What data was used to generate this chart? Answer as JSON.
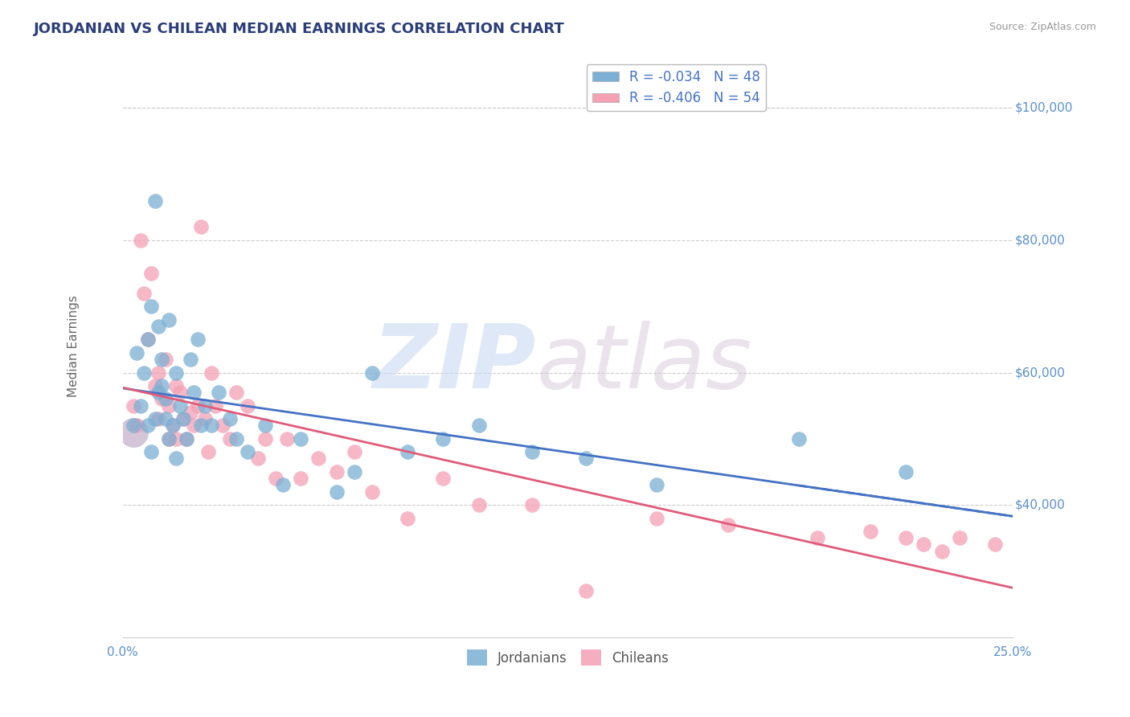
{
  "title": "JORDANIAN VS CHILEAN MEDIAN EARNINGS CORRELATION CHART",
  "source": "Source: ZipAtlas.com",
  "ylabel": "Median Earnings",
  "xlim": [
    0.0,
    0.25
  ],
  "ylim": [
    20000,
    108000
  ],
  "jordanians_color": "#7bafd4",
  "chileans_color": "#f4a0b5",
  "trendline_jordan_color": "#4472c4",
  "trendline_chile_color": "#e05c7a",
  "title_color": "#2c3e7a",
  "tick_label_color": "#5b8fcf",
  "grid_color": "#cccccc",
  "jordanians_x": [
    0.003,
    0.004,
    0.005,
    0.006,
    0.007,
    0.007,
    0.008,
    0.008,
    0.009,
    0.009,
    0.01,
    0.01,
    0.011,
    0.011,
    0.012,
    0.012,
    0.013,
    0.013,
    0.014,
    0.015,
    0.015,
    0.016,
    0.017,
    0.018,
    0.019,
    0.02,
    0.021,
    0.022,
    0.023,
    0.025,
    0.027,
    0.03,
    0.032,
    0.035,
    0.04,
    0.045,
    0.05,
    0.06,
    0.065,
    0.07,
    0.08,
    0.09,
    0.1,
    0.115,
    0.13,
    0.15,
    0.19,
    0.22
  ],
  "jordanians_y": [
    52000,
    63000,
    55000,
    60000,
    52000,
    65000,
    48000,
    70000,
    53000,
    86000,
    57000,
    67000,
    62000,
    58000,
    56000,
    53000,
    50000,
    68000,
    52000,
    47000,
    60000,
    55000,
    53000,
    50000,
    62000,
    57000,
    65000,
    52000,
    55000,
    52000,
    57000,
    53000,
    50000,
    48000,
    52000,
    43000,
    50000,
    42000,
    45000,
    60000,
    48000,
    50000,
    52000,
    48000,
    47000,
    43000,
    50000,
    45000
  ],
  "jordanians_size_base": 180,
  "jordanians_big": [
    0,
    1
  ],
  "chileans_x": [
    0.003,
    0.004,
    0.005,
    0.006,
    0.007,
    0.008,
    0.009,
    0.01,
    0.01,
    0.011,
    0.012,
    0.013,
    0.013,
    0.014,
    0.015,
    0.015,
    0.016,
    0.017,
    0.018,
    0.019,
    0.02,
    0.021,
    0.022,
    0.023,
    0.024,
    0.025,
    0.026,
    0.028,
    0.03,
    0.032,
    0.035,
    0.038,
    0.04,
    0.043,
    0.046,
    0.05,
    0.055,
    0.06,
    0.065,
    0.07,
    0.08,
    0.09,
    0.1,
    0.115,
    0.13,
    0.15,
    0.17,
    0.195,
    0.21,
    0.22,
    0.225,
    0.23,
    0.235,
    0.245
  ],
  "chileans_y": [
    55000,
    52000,
    80000,
    72000,
    65000,
    75000,
    58000,
    53000,
    60000,
    56000,
    62000,
    50000,
    55000,
    52000,
    58000,
    50000,
    57000,
    53000,
    50000,
    54000,
    52000,
    55000,
    82000,
    53000,
    48000,
    60000,
    55000,
    52000,
    50000,
    57000,
    55000,
    47000,
    50000,
    44000,
    50000,
    44000,
    47000,
    45000,
    48000,
    42000,
    38000,
    44000,
    40000,
    40000,
    27000,
    38000,
    37000,
    35000,
    36000,
    35000,
    34000,
    33000,
    35000,
    34000
  ],
  "ytick_vals": [
    40000,
    60000,
    80000,
    100000
  ],
  "ytick_labels": [
    "$40,000",
    "$60,000",
    "$80,000",
    "$100,000"
  ]
}
